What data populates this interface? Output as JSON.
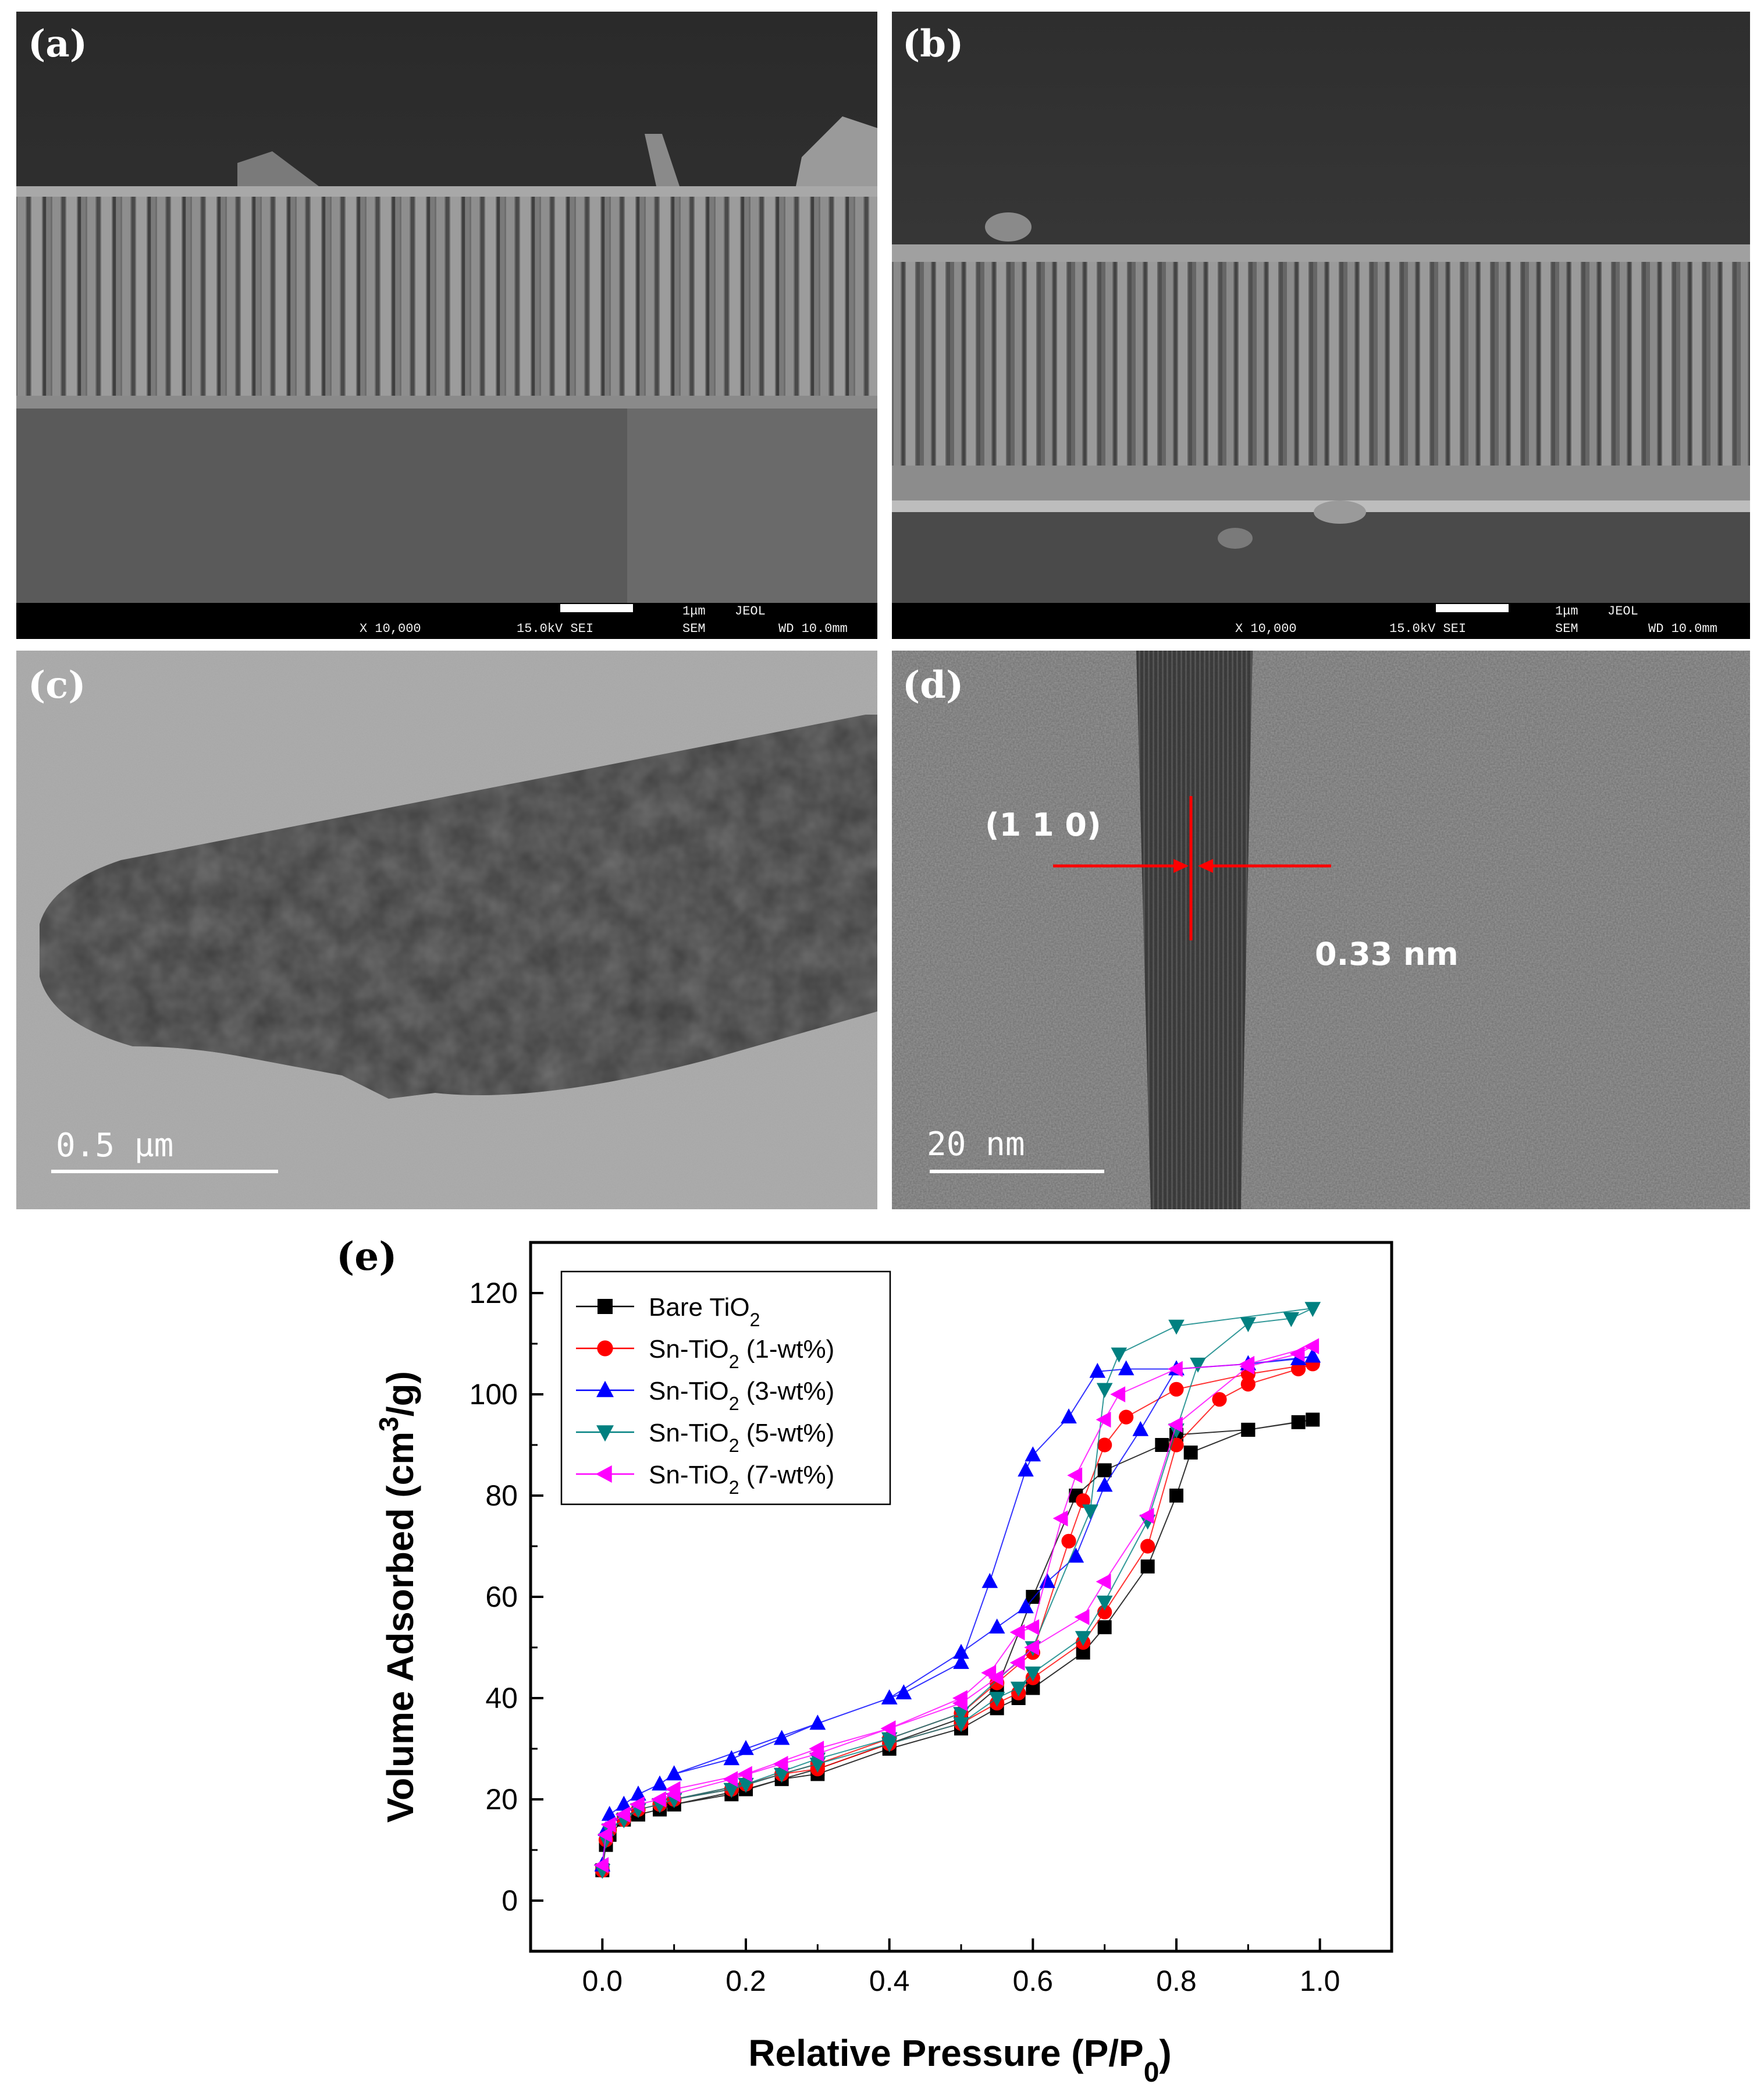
{
  "panels": {
    "a": {
      "label": "(a)",
      "scale": "1μm",
      "brand": "JEOL",
      "mag": "X 10,000",
      "kv": "15.0kV SEI",
      "mode": "SEM",
      "wd": "WD 10.0mm"
    },
    "b": {
      "label": "(b)",
      "scale": "1μm",
      "brand": "JEOL",
      "mag": "X 10,000",
      "kv": "15.0kV SEI",
      "mode": "SEM",
      "wd": "WD 10.0mm"
    },
    "c": {
      "label": "(c)",
      "scale": "0.5 μm"
    },
    "d": {
      "label": "(d)",
      "scale": "20 nm",
      "plane": "(1 1 0)",
      "spacing": "0.33 nm"
    },
    "e": {
      "label": "(e)"
    }
  },
  "chart_data": {
    "type": "line",
    "xlabel": "Relative Pressure (P/P0)",
    "ylabel": "Volume Adsorbed (cm3/g)",
    "xlim": [
      -0.1,
      1.1
    ],
    "ylim": [
      -10,
      130
    ],
    "xticks": [
      "0.0",
      "0.2",
      "0.4",
      "0.6",
      "0.8",
      "1.0"
    ],
    "yticks": [
      "0",
      "20",
      "40",
      "60",
      "80",
      "100",
      "120"
    ],
    "legend_position": "top-left",
    "series": [
      {
        "name": "Bare TiO2",
        "color": "#000000",
        "marker": "square",
        "x": [
          0.0,
          0.005,
          0.01,
          0.03,
          0.05,
          0.08,
          0.1,
          0.18,
          0.25,
          0.3,
          0.4,
          0.5,
          0.55,
          0.58,
          0.6,
          0.67,
          0.7,
          0.76,
          0.8,
          0.82,
          0.9,
          0.97,
          0.99,
          0.9,
          0.8,
          0.78,
          0.7,
          0.66,
          0.6,
          0.55,
          0.5,
          0.4,
          0.3,
          0.2,
          0.1
        ],
        "y": [
          6,
          11,
          13,
          16,
          17,
          18,
          19,
          21,
          24,
          25,
          30,
          34,
          38,
          40,
          42,
          49,
          54,
          66,
          80,
          88.5,
          93,
          94.5,
          95,
          93,
          92,
          90,
          85,
          80,
          60,
          42,
          36,
          31,
          26,
          22,
          19
        ]
      },
      {
        "name": "Sn-TiO2 (1-wt%)",
        "color": "#ff0000",
        "marker": "circle",
        "x": [
          0.0,
          0.005,
          0.01,
          0.03,
          0.05,
          0.08,
          0.1,
          0.18,
          0.25,
          0.3,
          0.4,
          0.5,
          0.55,
          0.58,
          0.6,
          0.67,
          0.7,
          0.76,
          0.8,
          0.86,
          0.9,
          0.97,
          0.99,
          0.9,
          0.8,
          0.73,
          0.7,
          0.67,
          0.65,
          0.6,
          0.55,
          0.5,
          0.4,
          0.3,
          0.2,
          0.1
        ],
        "y": [
          6,
          12,
          14,
          16,
          18,
          19,
          20,
          22,
          25,
          26,
          31,
          35,
          39,
          41,
          44,
          51,
          57,
          70,
          90,
          99,
          102,
          105,
          106,
          104,
          101,
          95.5,
          90,
          79,
          71,
          49,
          43,
          37,
          32,
          27,
          23,
          20
        ]
      },
      {
        "name": "Sn-TiO2 (3-wt%)",
        "color": "#0000ff",
        "marker": "triangle-up",
        "x": [
          0.0,
          0.005,
          0.01,
          0.03,
          0.05,
          0.08,
          0.1,
          0.18,
          0.25,
          0.3,
          0.4,
          0.5,
          0.55,
          0.59,
          0.62,
          0.66,
          0.7,
          0.75,
          0.8,
          0.9,
          0.97,
          0.99,
          0.9,
          0.8,
          0.73,
          0.69,
          0.65,
          0.6,
          0.59,
          0.54,
          0.5,
          0.42,
          0.4,
          0.3,
          0.2,
          0.1
        ],
        "y": [
          7,
          14,
          17,
          19,
          21,
          23,
          25,
          28,
          32,
          35,
          40,
          49,
          54,
          58,
          63,
          68,
          82,
          93,
          105,
          106,
          107,
          107.5,
          106,
          105,
          105,
          104.5,
          95.5,
          88,
          85,
          63,
          47,
          41,
          40,
          35,
          30,
          25
        ]
      },
      {
        "name": "Sn-TiO2 (5-wt%)",
        "color": "#008080",
        "marker": "triangle-down",
        "x": [
          0.0,
          0.005,
          0.01,
          0.03,
          0.05,
          0.08,
          0.1,
          0.18,
          0.25,
          0.3,
          0.4,
          0.5,
          0.55,
          0.58,
          0.6,
          0.67,
          0.7,
          0.76,
          0.8,
          0.83,
          0.9,
          0.96,
          0.99,
          0.8,
          0.72,
          0.7,
          0.68,
          0.6,
          0.5,
          0.4,
          0.3,
          0.2,
          0.1
        ],
        "y": [
          6,
          12,
          14,
          16,
          18,
          19,
          20,
          22,
          25,
          27,
          31,
          35,
          40,
          42,
          45,
          52,
          59,
          75,
          93,
          106,
          114,
          115,
          117,
          113.5,
          108,
          101,
          77,
          50,
          37,
          32,
          28,
          23,
          20
        ]
      },
      {
        "name": "Sn-TiO2 (7-wt%)",
        "color": "#ff00ff",
        "marker": "triangle-left",
        "x": [
          0.0,
          0.005,
          0.01,
          0.03,
          0.05,
          0.08,
          0.1,
          0.18,
          0.25,
          0.3,
          0.4,
          0.5,
          0.55,
          0.58,
          0.6,
          0.67,
          0.7,
          0.76,
          0.8,
          0.9,
          0.97,
          0.99,
          0.9,
          0.8,
          0.72,
          0.7,
          0.66,
          0.64,
          0.6,
          0.58,
          0.54,
          0.5,
          0.4,
          0.3,
          0.2,
          0.1
        ],
        "y": [
          7,
          13,
          15,
          17,
          19,
          20,
          21,
          24,
          27,
          29,
          34,
          39,
          44,
          47,
          50,
          56,
          63,
          76,
          94,
          105.5,
          108,
          109.5,
          106,
          105,
          100,
          95,
          84,
          75.5,
          54,
          53,
          45,
          40,
          34,
          30,
          25,
          22
        ]
      }
    ]
  }
}
